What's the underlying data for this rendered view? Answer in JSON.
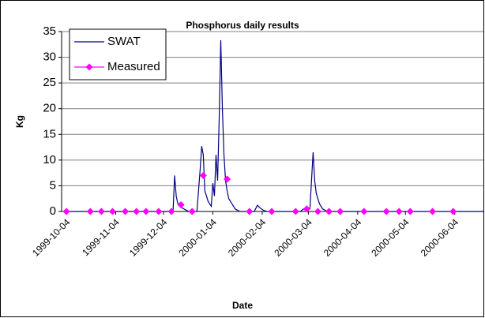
{
  "chart_data": {
    "type": "line",
    "title": "Phosphorus daily results",
    "x_label": "Date",
    "y_label": "Kg",
    "xlim": [
      "1999-10-01",
      "2000-06-22"
    ],
    "xticks": [
      "1999-10-04",
      "1999-11-04",
      "1999-12-04",
      "2000-01-04",
      "2000-02-04",
      "2000-03-04",
      "2000-04-04",
      "2000-05-04",
      "2000-06-04"
    ],
    "ylim": [
      0,
      35
    ],
    "yticks": [
      0,
      5,
      10,
      15,
      20,
      25,
      30,
      35
    ],
    "grid": true,
    "legend": "upper left",
    "series": [
      {
        "name": "SWAT",
        "color": "#000080",
        "marker": "none",
        "x": [
          "1999-10-04",
          "1999-12-10",
          "1999-12-11",
          "1999-12-12",
          "1999-12-13",
          "1999-12-15",
          "1999-12-18",
          "1999-12-20",
          "1999-12-25",
          "1999-12-27",
          "1999-12-28",
          "1999-12-29",
          "1999-12-30",
          "2000-01-01",
          "2000-01-03",
          "2000-01-04",
          "2000-01-05",
          "2000-01-06",
          "2000-01-07",
          "2000-01-08",
          "2000-01-09",
          "2000-01-10",
          "2000-01-11",
          "2000-01-12",
          "2000-01-13",
          "2000-01-14",
          "2000-01-16",
          "2000-01-18",
          "2000-01-21",
          "2000-01-30",
          "2000-02-01",
          "2000-02-03",
          "2000-02-05",
          "2000-02-07",
          "2000-02-28",
          "2000-03-01",
          "2000-03-02",
          "2000-03-03",
          "2000-03-04",
          "2000-03-05",
          "2000-03-07",
          "2000-03-08",
          "2000-03-09",
          "2000-03-11",
          "2000-03-13",
          "2000-03-16",
          "2000-06-22"
        ],
        "values": [
          0,
          0,
          7,
          3,
          1.5,
          0.8,
          0.3,
          0,
          0,
          8,
          12.7,
          11,
          4,
          2,
          1,
          5.5,
          3,
          11,
          6,
          18,
          33.3,
          20,
          11,
          6,
          4,
          2.5,
          1.5,
          0.5,
          0,
          0,
          1.2,
          0.6,
          0.2,
          0,
          0,
          0.5,
          0.3,
          1,
          0.4,
          0.5,
          11.5,
          6,
          3.5,
          1.5,
          0.5,
          0,
          0
        ]
      },
      {
        "name": "Measured",
        "color": "#ff00ff",
        "marker": "diamond",
        "x": [
          "1999-10-04",
          "1999-10-19",
          "1999-10-26",
          "1999-11-02",
          "1999-11-10",
          "1999-11-17",
          "1999-11-23",
          "1999-12-01",
          "1999-12-09",
          "1999-12-15",
          "1999-12-22",
          "1999-12-29",
          "2000-01-13",
          "2000-01-27",
          "2000-02-10",
          "2000-02-25",
          "2000-03-03",
          "2000-03-10",
          "2000-03-17",
          "2000-03-24",
          "2000-04-08",
          "2000-04-22",
          "2000-04-30",
          "2000-05-07",
          "2000-05-21",
          "2000-06-03"
        ],
        "values": [
          0,
          0,
          0,
          0,
          0,
          0,
          0,
          0,
          0,
          1.3,
          0,
          7,
          6.3,
          0,
          0,
          0,
          0.5,
          0,
          0,
          0,
          0,
          0,
          0,
          0,
          0,
          0
        ]
      }
    ]
  }
}
